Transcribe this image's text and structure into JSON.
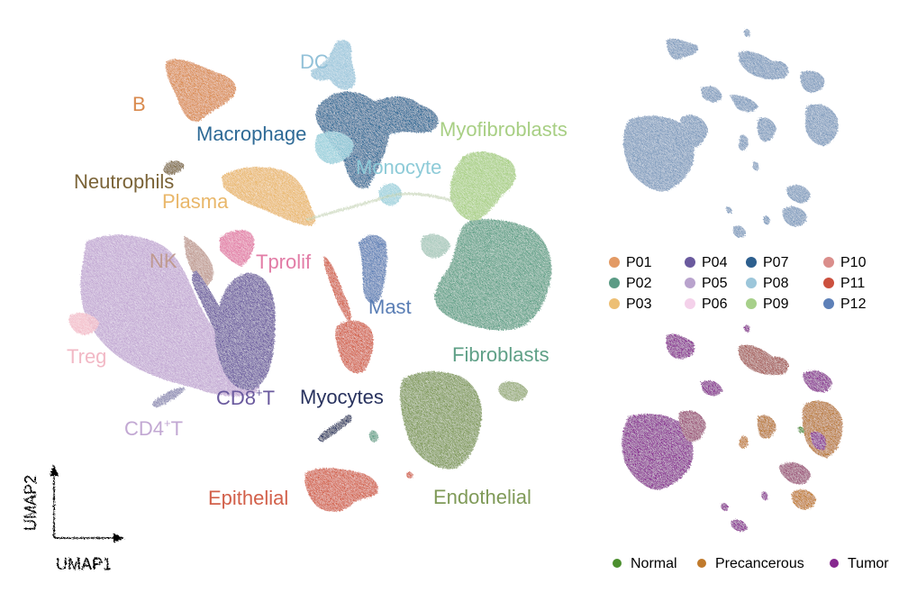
{
  "main_umap": {
    "axis_x_label": "UMAP1",
    "axis_y_label": "UMAP2",
    "clusters": [
      {
        "key": "b",
        "label": "B",
        "color": "#d98a4e"
      },
      {
        "key": "dc",
        "label": "DC",
        "color": "#92c1d8"
      },
      {
        "key": "macrophage",
        "label": "Macrophage",
        "color": "#2e6a96"
      },
      {
        "key": "myofibroblasts",
        "label": "Myofibroblasts",
        "color": "#a8cf84"
      },
      {
        "key": "neutrophils",
        "label": "Neutrophils",
        "color": "#7a6337"
      },
      {
        "key": "monocyte",
        "label": "Monocyte",
        "color": "#8ecbd8"
      },
      {
        "key": "plasma",
        "label": "Plasma",
        "color": "#e9b76a"
      },
      {
        "key": "nk",
        "label": "NK",
        "color": "#bf9a90"
      },
      {
        "key": "tprolif",
        "label": "Tprolif",
        "color": "#e27ca6"
      },
      {
        "key": "mast",
        "label": "Mast",
        "color": "#5a7eb5"
      },
      {
        "key": "fibroblasts",
        "label": "Fibroblasts",
        "color": "#5fa087"
      },
      {
        "key": "treg",
        "label": "Treg",
        "color": "#f2b8c5"
      },
      {
        "key": "cd8t",
        "label": "CD8",
        "sup": "+",
        "suffix": "T",
        "color": "#6a5a9e"
      },
      {
        "key": "myocytes",
        "label": "Myocytes",
        "color": "#28325e"
      },
      {
        "key": "cd4t",
        "label": "CD4",
        "sup": "+",
        "suffix": "T",
        "color": "#c2a8d3"
      },
      {
        "key": "epithelial",
        "label": "Epithelial",
        "color": "#d2604a"
      },
      {
        "key": "endothelial",
        "label": "Endothelial",
        "color": "#7f9a58"
      }
    ]
  },
  "patient_legend": [
    {
      "label": "P01",
      "color": "#e39a64"
    },
    {
      "label": "P02",
      "color": "#5b9b85"
    },
    {
      "label": "P03",
      "color": "#edbf74"
    },
    {
      "label": "P04",
      "color": "#6a5a9e"
    },
    {
      "label": "P05",
      "color": "#b9a3cd"
    },
    {
      "label": "P06",
      "color": "#f4d1ea"
    },
    {
      "label": "P07",
      "color": "#2d5f8e"
    },
    {
      "label": "P08",
      "color": "#9cc6da"
    },
    {
      "label": "P09",
      "color": "#a7d08a"
    },
    {
      "label": "P10",
      "color": "#da8e8b"
    },
    {
      "label": "P11",
      "color": "#cb503e"
    },
    {
      "label": "P12",
      "color": "#5d80b8"
    }
  ],
  "condition_legend": [
    {
      "label": "Normal",
      "color": "#4b8f2e"
    },
    {
      "label": "Precancerous",
      "color": "#c07a2c"
    },
    {
      "label": "Tumor",
      "color": "#86278f"
    }
  ],
  "chart_data": {
    "type": "scatter",
    "xlabel": "UMAP1",
    "ylabel": "UMAP2",
    "series": [
      {
        "name": "B"
      },
      {
        "name": "DC"
      },
      {
        "name": "Macrophage"
      },
      {
        "name": "Myofibroblasts"
      },
      {
        "name": "Neutrophils"
      },
      {
        "name": "Monocyte"
      },
      {
        "name": "Plasma"
      },
      {
        "name": "NK"
      },
      {
        "name": "Tprolif"
      },
      {
        "name": "Mast"
      },
      {
        "name": "Fibroblasts"
      },
      {
        "name": "Treg"
      },
      {
        "name": "CD8+T"
      },
      {
        "name": "Myocytes"
      },
      {
        "name": "CD4+T"
      },
      {
        "name": "Epithelial"
      },
      {
        "name": "Endothelial"
      }
    ],
    "legend_patient": [
      "P01",
      "P02",
      "P03",
      "P04",
      "P05",
      "P06",
      "P07",
      "P08",
      "P09",
      "P10",
      "P11",
      "P12"
    ],
    "legend_condition": [
      "Normal",
      "Precancerous",
      "Tumor"
    ]
  }
}
